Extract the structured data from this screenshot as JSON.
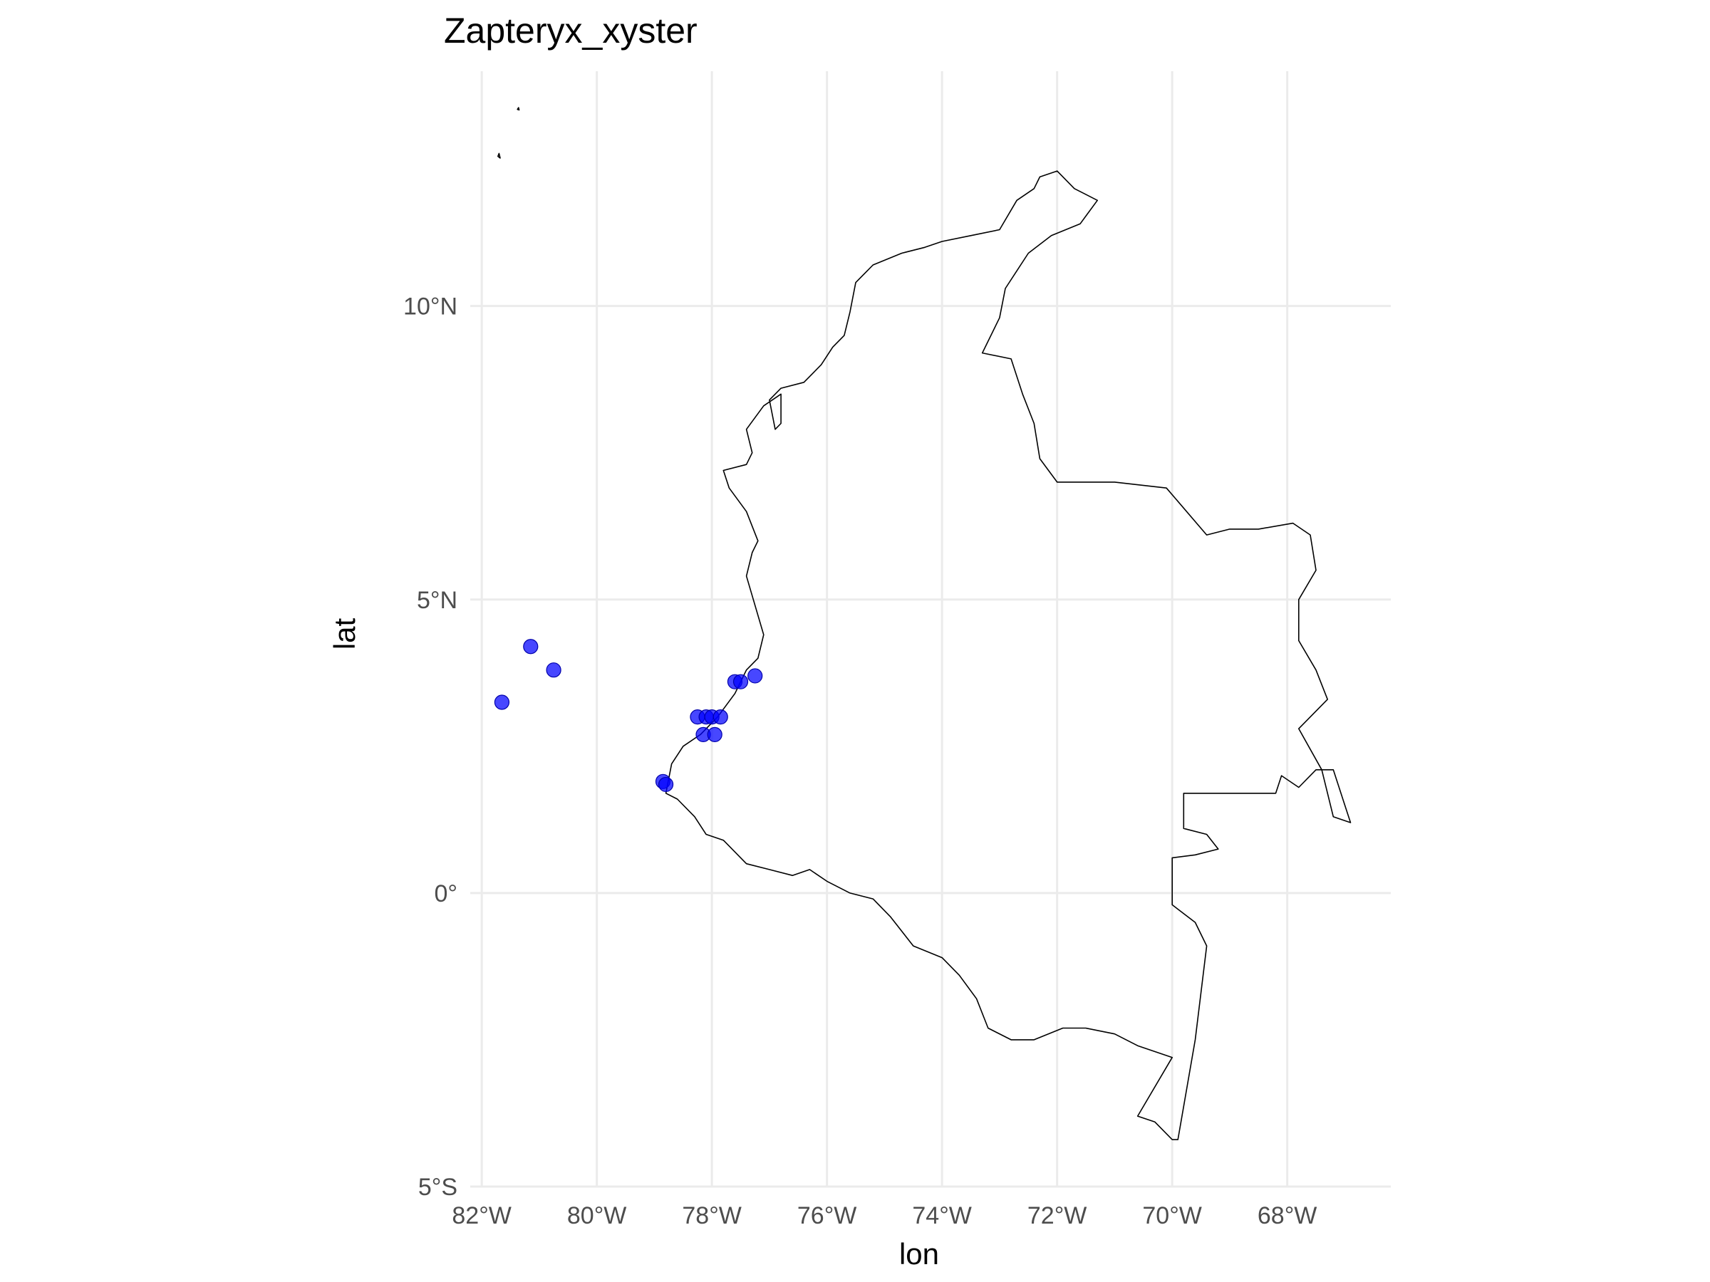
{
  "chart_data": {
    "type": "scatter",
    "title": "Zapteryx_xyster",
    "xlabel": "lon",
    "ylabel": "lat",
    "xlim": [
      -82.2,
      -66.2
    ],
    "ylim": [
      -5.0,
      14.0
    ],
    "x_ticks": [
      {
        "value": -82,
        "label": "82°W"
      },
      {
        "value": -80,
        "label": "80°W"
      },
      {
        "value": -78,
        "label": "78°W"
      },
      {
        "value": -76,
        "label": "76°W"
      },
      {
        "value": -74,
        "label": "74°W"
      },
      {
        "value": -72,
        "label": "72°W"
      },
      {
        "value": -70,
        "label": "70°W"
      },
      {
        "value": -68,
        "label": "68°W"
      }
    ],
    "y_ticks": [
      {
        "value": 10,
        "label": "10°N"
      },
      {
        "value": 5,
        "label": "5°N"
      },
      {
        "value": 0,
        "label": "0°"
      },
      {
        "value": -5,
        "label": "5°S"
      }
    ],
    "grid": true,
    "point_color": "#0000ff",
    "points": [
      {
        "lon": -81.65,
        "lat": 3.25
      },
      {
        "lon": -81.15,
        "lat": 4.2
      },
      {
        "lon": -80.75,
        "lat": 3.8
      },
      {
        "lon": -78.85,
        "lat": 1.9
      },
      {
        "lon": -78.8,
        "lat": 1.85
      },
      {
        "lon": -78.25,
        "lat": 3.0
      },
      {
        "lon": -78.15,
        "lat": 2.7
      },
      {
        "lon": -78.1,
        "lat": 3.0
      },
      {
        "lon": -78.0,
        "lat": 3.0
      },
      {
        "lon": -77.95,
        "lat": 2.7
      },
      {
        "lon": -77.85,
        "lat": 3.0
      },
      {
        "lon": -77.6,
        "lat": 3.6
      },
      {
        "lon": -77.5,
        "lat": 3.6
      },
      {
        "lon": -77.25,
        "lat": 3.7
      }
    ],
    "country_border": [
      [
        -78.8,
        1.7
      ],
      [
        -78.6,
        1.6
      ],
      [
        -78.3,
        1.3
      ],
      [
        -78.1,
        1.0
      ],
      [
        -77.8,
        0.9
      ],
      [
        -77.4,
        0.5
      ],
      [
        -77.0,
        0.4
      ],
      [
        -76.6,
        0.3
      ],
      [
        -76.3,
        0.4
      ],
      [
        -76.0,
        0.2
      ],
      [
        -75.6,
        0.0
      ],
      [
        -75.2,
        -0.1
      ],
      [
        -74.9,
        -0.4
      ],
      [
        -74.5,
        -0.9
      ],
      [
        -74.0,
        -1.1
      ],
      [
        -73.7,
        -1.4
      ],
      [
        -73.4,
        -1.8
      ],
      [
        -73.2,
        -2.3
      ],
      [
        -72.8,
        -2.5
      ],
      [
        -72.4,
        -2.5
      ],
      [
        -71.9,
        -2.3
      ],
      [
        -71.5,
        -2.3
      ],
      [
        -71.0,
        -2.4
      ],
      [
        -70.6,
        -2.6
      ],
      [
        -70.0,
        -2.8
      ],
      [
        -70.6,
        -3.8
      ],
      [
        -70.3,
        -3.9
      ],
      [
        -70.0,
        -4.2
      ],
      [
        -69.9,
        -4.2
      ],
      [
        -69.6,
        -2.5
      ],
      [
        -69.4,
        -0.9
      ],
      [
        -69.6,
        -0.5
      ],
      [
        -70.0,
        -0.2
      ],
      [
        -70.0,
        0.6
      ],
      [
        -69.6,
        0.65
      ],
      [
        -69.2,
        0.75
      ],
      [
        -69.4,
        1.0
      ],
      [
        -69.8,
        1.1
      ],
      [
        -69.8,
        1.7
      ],
      [
        -68.2,
        1.7
      ],
      [
        -68.1,
        2.0
      ],
      [
        -67.8,
        1.8
      ],
      [
        -67.5,
        2.1
      ],
      [
        -67.2,
        2.1
      ],
      [
        -67.0,
        1.5
      ],
      [
        -66.9,
        1.2
      ],
      [
        -67.2,
        1.3
      ],
      [
        -67.4,
        2.1
      ],
      [
        -67.8,
        2.8
      ],
      [
        -67.3,
        3.3
      ],
      [
        -67.5,
        3.8
      ],
      [
        -67.8,
        4.3
      ],
      [
        -67.8,
        5.0
      ],
      [
        -67.5,
        5.5
      ],
      [
        -67.6,
        6.1
      ],
      [
        -67.9,
        6.3
      ],
      [
        -68.5,
        6.2
      ],
      [
        -69.0,
        6.2
      ],
      [
        -69.4,
        6.1
      ],
      [
        -70.1,
        6.9
      ],
      [
        -71.0,
        7.0
      ],
      [
        -72.0,
        7.0
      ],
      [
        -72.3,
        7.4
      ],
      [
        -72.4,
        8.0
      ],
      [
        -72.6,
        8.5
      ],
      [
        -72.8,
        9.1
      ],
      [
        -73.3,
        9.2
      ],
      [
        -73.0,
        9.8
      ],
      [
        -72.9,
        10.3
      ],
      [
        -72.5,
        10.9
      ],
      [
        -72.1,
        11.2
      ],
      [
        -71.6,
        11.4
      ],
      [
        -71.3,
        11.8
      ],
      [
        -71.7,
        12.0
      ],
      [
        -72.0,
        12.3
      ],
      [
        -72.3,
        12.2
      ],
      [
        -72.4,
        12.0
      ],
      [
        -72.7,
        11.8
      ],
      [
        -73.0,
        11.3
      ],
      [
        -73.5,
        11.2
      ],
      [
        -74.0,
        11.1
      ],
      [
        -74.3,
        11.0
      ],
      [
        -74.7,
        10.9
      ],
      [
        -75.2,
        10.7
      ],
      [
        -75.5,
        10.4
      ],
      [
        -75.6,
        9.9
      ],
      [
        -75.7,
        9.5
      ],
      [
        -75.9,
        9.3
      ],
      [
        -76.1,
        9.0
      ],
      [
        -76.4,
        8.7
      ],
      [
        -76.8,
        8.6
      ],
      [
        -77.0,
        8.4
      ],
      [
        -76.9,
        7.9
      ],
      [
        -76.8,
        8.0
      ],
      [
        -76.8,
        8.5
      ],
      [
        -77.1,
        8.3
      ],
      [
        -77.4,
        7.9
      ],
      [
        -77.3,
        7.5
      ],
      [
        -77.4,
        7.3
      ],
      [
        -77.8,
        7.2
      ],
      [
        -77.7,
        6.9
      ],
      [
        -77.4,
        6.5
      ],
      [
        -77.2,
        6.0
      ],
      [
        -77.3,
        5.8
      ],
      [
        -77.4,
        5.4
      ],
      [
        -77.1,
        4.4
      ],
      [
        -77.2,
        4.0
      ],
      [
        -77.4,
        3.8
      ],
      [
        -77.6,
        3.4
      ],
      [
        -77.9,
        3.0
      ],
      [
        -78.2,
        2.7
      ],
      [
        -78.5,
        2.5
      ],
      [
        -78.7,
        2.2
      ],
      [
        -78.8,
        1.7
      ]
    ],
    "islands": [
      [
        [
          -81.72,
          12.55
        ],
        [
          -81.7,
          12.6
        ],
        [
          -81.68,
          12.52
        ],
        [
          -81.72,
          12.55
        ]
      ],
      [
        [
          -81.38,
          13.35
        ],
        [
          -81.36,
          13.38
        ],
        [
          -81.35,
          13.34
        ],
        [
          -81.38,
          13.35
        ]
      ]
    ]
  }
}
